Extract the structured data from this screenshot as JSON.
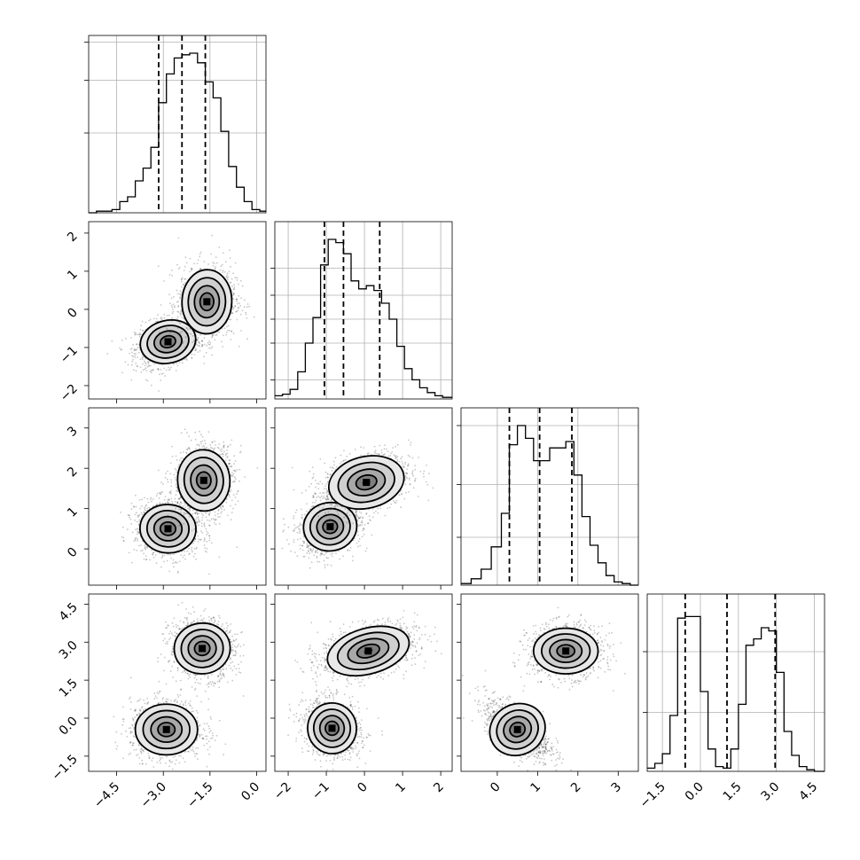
{
  "chart_data": {
    "type": "corner",
    "title": "",
    "grid": true,
    "axis_ranges": [
      [
        -5.4,
        0.3
      ],
      [
        -2.35,
        2.3
      ],
      [
        -0.9,
        3.5
      ],
      [
        -2.1,
        4.9
      ]
    ],
    "tick_labels": {
      "bottom": [
        [
          "−4.5",
          "−3.0",
          "−1.5",
          "0.0"
        ],
        [
          "−2",
          "−1",
          "0",
          "1",
          "2"
        ],
        [
          "0",
          "1",
          "2",
          "3"
        ],
        [
          "−1.5",
          "0.0",
          "1.5",
          "3.0",
          "4.5"
        ]
      ],
      "left": [
        [],
        [
          "2",
          "1",
          "0",
          "−1",
          "−2"
        ],
        [
          "3",
          "2",
          "1",
          "0"
        ],
        [
          "4.5",
          "3.0",
          "1.5",
          "0.0",
          "−1.5"
        ]
      ]
    },
    "tick_values": {
      "x": [
        [
          -4.5,
          -3.0,
          -1.5,
          0.0
        ],
        [
          -2,
          -1,
          0,
          1,
          2
        ],
        [
          0,
          1,
          2,
          3
        ],
        [
          -1.5,
          0.0,
          1.5,
          3.0,
          4.5
        ]
      ],
      "y": [
        [],
        [
          -2,
          -1,
          0,
          1,
          2
        ],
        [
          0,
          1,
          2,
          3
        ],
        [
          -1.5,
          0.0,
          1.5,
          3.0,
          4.5
        ]
      ],
      "hist_y": [
        [
          0.5,
          0.83,
          1.07
        ],
        [
          0.12,
          0.35,
          0.5,
          0.65,
          0.82
        ],
        [
          0.3,
          0.63,
          1.0
        ],
        [
          0.37,
          0.75
        ]
      ]
    },
    "histograms": [
      {
        "dimension": 0,
        "bin_edges": [
          -5.4,
          -5.15,
          -4.9,
          -4.65,
          -4.4,
          -4.15,
          -3.9,
          -3.65,
          -3.4,
          -3.15,
          -2.9,
          -2.65,
          -2.4,
          -2.15,
          -1.9,
          -1.65,
          -1.4,
          -1.15,
          -0.9,
          -0.65,
          -0.4,
          -0.15,
          0.1,
          0.3
        ],
        "counts": [
          0.0,
          0.01,
          0.01,
          0.02,
          0.07,
          0.1,
          0.2,
          0.28,
          0.41,
          0.69,
          0.87,
          0.97,
          0.99,
          1.0,
          0.94,
          0.82,
          0.72,
          0.51,
          0.29,
          0.16,
          0.07,
          0.02,
          0.01
        ],
        "quantiles": [
          -3.15,
          -2.4,
          -1.65
        ]
      },
      {
        "dimension": 1,
        "bin_edges": [
          -2.35,
          -2.15,
          -1.95,
          -1.75,
          -1.55,
          -1.35,
          -1.15,
          -0.95,
          -0.75,
          -0.55,
          -0.35,
          -0.15,
          0.05,
          0.25,
          0.45,
          0.65,
          0.85,
          1.05,
          1.25,
          1.45,
          1.65,
          1.85,
          2.05,
          2.3
        ],
        "counts": [
          0.02,
          0.03,
          0.06,
          0.17,
          0.35,
          0.51,
          0.84,
          1.0,
          0.98,
          0.91,
          0.74,
          0.69,
          0.71,
          0.68,
          0.6,
          0.5,
          0.33,
          0.19,
          0.12,
          0.07,
          0.04,
          0.02,
          0.01
        ],
        "quantiles": [
          -1.05,
          -0.55,
          0.4
        ]
      },
      {
        "dimension": 2,
        "bin_edges": [
          -0.9,
          -0.65,
          -0.4,
          -0.15,
          0.1,
          0.3,
          0.5,
          0.7,
          0.9,
          1.1,
          1.3,
          1.5,
          1.7,
          1.9,
          2.1,
          2.3,
          2.5,
          2.7,
          2.9,
          3.1,
          3.3,
          3.5
        ],
        "counts": [
          0.01,
          0.04,
          0.1,
          0.24,
          0.45,
          0.88,
          1.0,
          0.92,
          0.78,
          0.78,
          0.86,
          0.86,
          0.9,
          0.69,
          0.43,
          0.25,
          0.14,
          0.06,
          0.02,
          0.01,
          0.0
        ],
        "quantiles": [
          0.3,
          1.05,
          1.85
        ]
      },
      {
        "dimension": 3,
        "bin_edges": [
          -2.1,
          -1.8,
          -1.5,
          -1.2,
          -0.9,
          -0.6,
          -0.3,
          0.0,
          0.3,
          0.6,
          0.9,
          1.2,
          1.5,
          1.8,
          2.1,
          2.4,
          2.7,
          3.0,
          3.3,
          3.6,
          3.9,
          4.2,
          4.5,
          4.9
        ],
        "counts": [
          0.02,
          0.05,
          0.11,
          0.35,
          0.96,
          0.97,
          0.97,
          0.5,
          0.14,
          0.03,
          0.02,
          0.14,
          0.42,
          0.79,
          0.83,
          0.9,
          0.88,
          0.62,
          0.25,
          0.1,
          0.03,
          0.01,
          0.0
        ],
        "quantiles": [
          -0.6,
          1.05,
          2.95
        ]
      }
    ],
    "scatter_panels": [
      {
        "x_dim": 0,
        "y_dim": 1,
        "modes": [
          {
            "x": -2.85,
            "y": -0.85,
            "sx": 0.45,
            "sy": 0.28,
            "rho": 0.3
          },
          {
            "x": -1.6,
            "y": 0.2,
            "sx": 0.4,
            "sy": 0.42,
            "rho": 0.05
          }
        ]
      },
      {
        "x_dim": 0,
        "y_dim": 2,
        "modes": [
          {
            "x": -2.85,
            "y": 0.5,
            "sx": 0.45,
            "sy": 0.3,
            "rho": -0.1
          },
          {
            "x": -1.7,
            "y": 1.7,
            "sx": 0.42,
            "sy": 0.38,
            "rho": 0.1
          }
        ]
      },
      {
        "x_dim": 1,
        "y_dim": 2,
        "modes": [
          {
            "x": -0.9,
            "y": 0.55,
            "sx": 0.35,
            "sy": 0.3,
            "rho": 0.2
          },
          {
            "x": 0.05,
            "y": 1.65,
            "sx": 0.5,
            "sy": 0.32,
            "rho": 0.3
          }
        ]
      },
      {
        "x_dim": 0,
        "y_dim": 3,
        "modes": [
          {
            "x": -2.9,
            "y": -0.45,
            "sx": 0.5,
            "sy": 0.5,
            "rho": 0.0
          },
          {
            "x": -1.75,
            "y": 2.75,
            "sx": 0.45,
            "sy": 0.5,
            "rho": -0.1
          }
        ]
      },
      {
        "x_dim": 1,
        "y_dim": 3,
        "modes": [
          {
            "x": -0.85,
            "y": -0.4,
            "sx": 0.32,
            "sy": 0.5,
            "rho": -0.15
          },
          {
            "x": 0.1,
            "y": 2.65,
            "sx": 0.55,
            "sy": 0.45,
            "rho": 0.35
          }
        ]
      },
      {
        "x_dim": 2,
        "y_dim": 3,
        "modes": [
          {
            "x": 0.5,
            "y": -0.45,
            "sx": 0.35,
            "sy": 0.5,
            "rho": -0.6
          },
          {
            "x": 1.7,
            "y": 2.65,
            "sx": 0.4,
            "sy": 0.45,
            "rho": 0.0
          }
        ]
      }
    ],
    "colors": {
      "contour": "#000000",
      "points": "#000000",
      "grid": "#b0b0b0"
    }
  }
}
